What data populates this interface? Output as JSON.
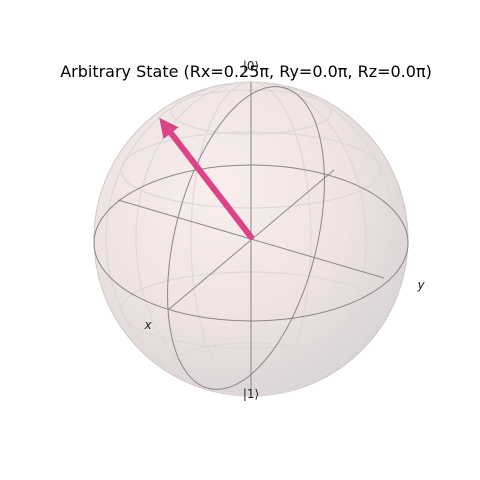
{
  "title": "Arbitrary State (Rx=0.25π, Ry=0.0π, Rz=0.0π)",
  "labels": {
    "ket0": "|0⟩",
    "ket1": "|1⟩",
    "x_axis": "x",
    "y_axis": "y"
  },
  "state": {
    "rx_pi": 0.25,
    "ry_pi": 0.0,
    "rz_pi": 0.0
  },
  "colors": {
    "vector": "#dd4488",
    "sphere_fill": "#f6e8e8",
    "wireframe": "#888888",
    "grid": "#dddddd"
  }
}
